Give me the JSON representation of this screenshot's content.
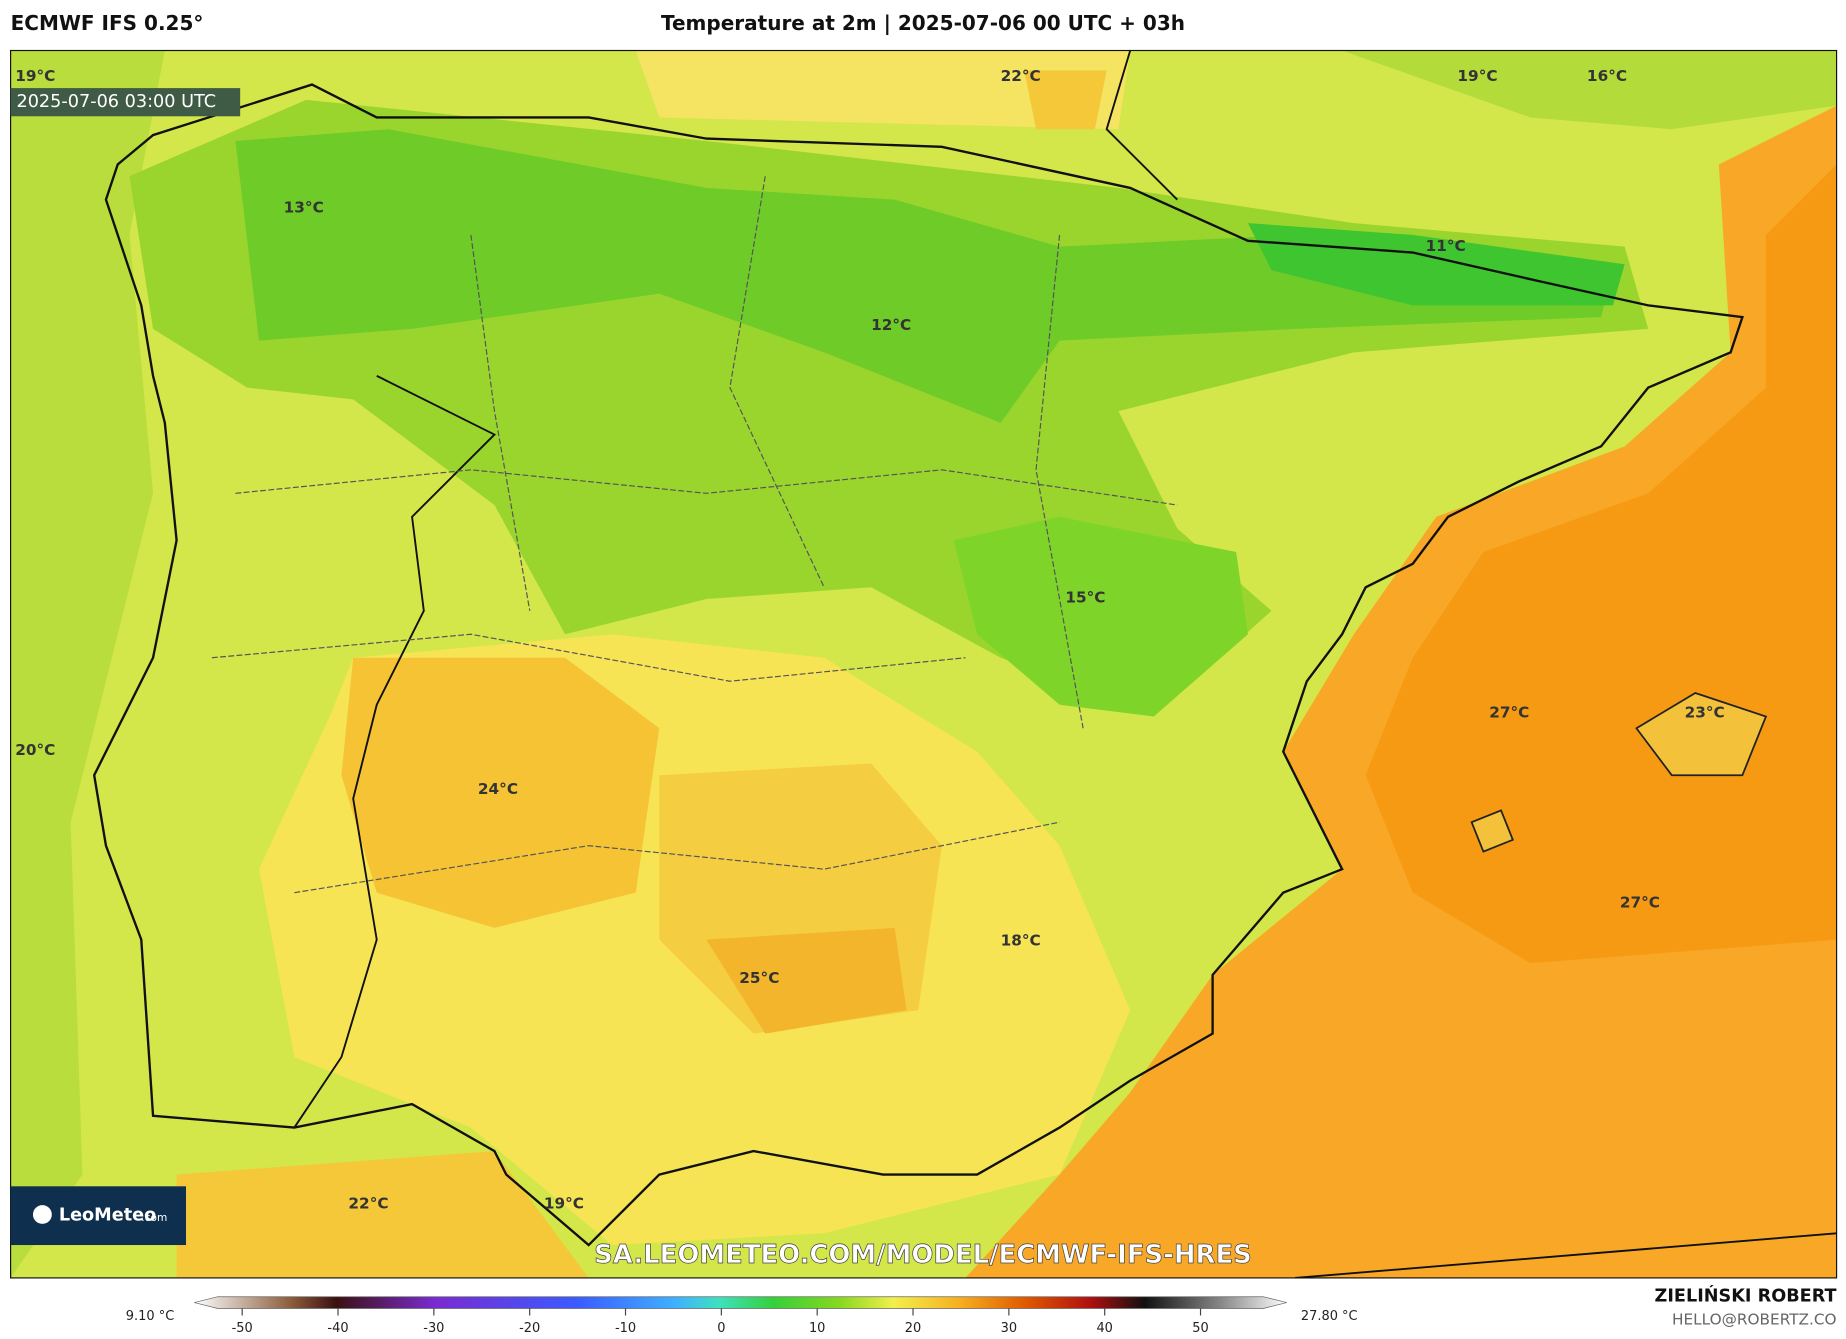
{
  "header": {
    "model": "ECMWF IFS 0.25°",
    "title": "Temperature at 2m | 2025-07-06 00 UTC + 03h"
  },
  "valid_time": "2025-07-06 03:00 UTC",
  "map_labels": [
    "19°C",
    "22°C",
    "19°C",
    "16°C",
    "13°C",
    "11°C",
    "12°C",
    "15°C",
    "20°C",
    "27°C",
    "23°C",
    "24°C",
    "27°C",
    "18°C",
    "25°C",
    "22°C",
    "19°C"
  ],
  "logo": {
    "name": "LeoMeteo",
    "suffix": ".com"
  },
  "watermark": "SA.LEOMETEO.COM/MODEL/ECMWF-IFS-HRES",
  "colorbar": {
    "min_label": "9.10 °C",
    "max_label": "27.80 °C",
    "xlim": [
      -55,
      59
    ],
    "xticks": [
      -50,
      -40,
      -30,
      -20,
      -10,
      0,
      10,
      20,
      30,
      40,
      50
    ]
  },
  "footer": {
    "author": "ZIELIŃSKI ROBERT",
    "contact": "HELLO@ROBERTZ.CO"
  }
}
